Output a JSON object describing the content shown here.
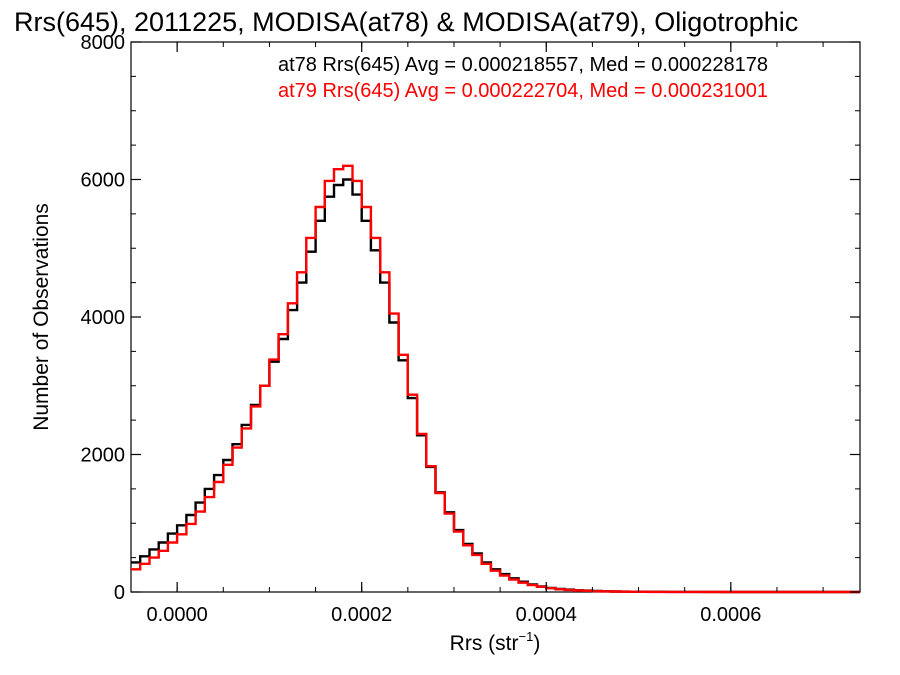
{
  "title": "Rrs(645), 2011225, MODISA(at78) & MODISA(at79), Oligotrophic",
  "stats": [
    {
      "text": "at78 Rrs(645) Avg = 0.000218557, Med = 0.000228178",
      "color": "#000000"
    },
    {
      "text": "at79 Rrs(645) Avg = 0.000222704, Med = 0.000231001",
      "color": "#ff0000"
    }
  ],
  "chart_data": {
    "type": "line",
    "step": true,
    "xlabel_main": "Rrs (str",
    "xlabel_sup": "−1",
    "xlabel_close": ")",
    "ylabel": "Number of Observations",
    "xlim": [
      -5e-05,
      0.00074
    ],
    "ylim": [
      0,
      8000
    ],
    "xticks": [
      0.0,
      0.0002,
      0.0004,
      0.0006
    ],
    "xtick_labels": [
      "0.0000",
      "0.0002",
      "0.0004",
      "0.0006"
    ],
    "yticks": [
      0,
      2000,
      4000,
      6000,
      8000
    ],
    "ytick_labels": [
      "0",
      "2000",
      "4000",
      "6000",
      "8000"
    ],
    "grid": false,
    "series": [
      {
        "name": "at78",
        "color": "#000000",
        "x": [
          -5e-05,
          -4e-05,
          -3e-05,
          -2e-05,
          -1e-05,
          0.0,
          1e-05,
          2e-05,
          3e-05,
          4e-05,
          5e-05,
          6e-05,
          7e-05,
          8e-05,
          9e-05,
          0.0001,
          0.00011,
          0.00012,
          0.00013,
          0.00014,
          0.00015,
          0.00016,
          0.00017,
          0.00018,
          0.00019,
          0.0002,
          0.00021,
          0.00022,
          0.00023,
          0.00024,
          0.00025,
          0.00026,
          0.00027,
          0.00028,
          0.00029,
          0.0003,
          0.00031,
          0.00032,
          0.00033,
          0.00034,
          0.00035,
          0.00036,
          0.00037,
          0.00038,
          0.00039,
          0.0004,
          0.00041,
          0.00042,
          0.00043,
          0.00044,
          0.00045,
          0.00046,
          0.00047,
          0.00048,
          0.00049,
          0.0005,
          0.00051,
          0.00052,
          0.00053,
          0.00054,
          0.00055,
          0.00056,
          0.00057,
          0.00058,
          0.00059,
          0.0006,
          0.00062,
          0.00064,
          0.00066,
          0.00068,
          0.0007,
          0.00072,
          0.00074
        ],
        "values": [
          430,
          520,
          620,
          720,
          850,
          970,
          1120,
          1300,
          1500,
          1700,
          1920,
          2150,
          2430,
          2720,
          3000,
          3350,
          3680,
          4100,
          4500,
          4950,
          5400,
          5750,
          5920,
          6000,
          5780,
          5400,
          4970,
          4500,
          3920,
          3370,
          2820,
          2280,
          1820,
          1450,
          1160,
          900,
          700,
          560,
          430,
          330,
          260,
          200,
          150,
          110,
          80,
          60,
          45,
          35,
          25,
          20,
          15,
          10,
          8,
          6,
          5,
          4,
          3,
          3,
          2,
          2,
          1,
          1,
          1,
          1,
          0,
          0,
          0,
          0,
          0,
          0,
          0,
          0,
          0
        ]
      },
      {
        "name": "at79",
        "color": "#ff0000",
        "x": [
          -5e-05,
          -4e-05,
          -3e-05,
          -2e-05,
          -1e-05,
          0.0,
          1e-05,
          2e-05,
          3e-05,
          4e-05,
          5e-05,
          6e-05,
          7e-05,
          8e-05,
          9e-05,
          0.0001,
          0.00011,
          0.00012,
          0.00013,
          0.00014,
          0.00015,
          0.00016,
          0.00017,
          0.00018,
          0.00019,
          0.0002,
          0.00021,
          0.00022,
          0.00023,
          0.00024,
          0.00025,
          0.00026,
          0.00027,
          0.00028,
          0.00029,
          0.0003,
          0.00031,
          0.00032,
          0.00033,
          0.00034,
          0.00035,
          0.00036,
          0.00037,
          0.00038,
          0.00039,
          0.0004,
          0.00041,
          0.00042,
          0.00043,
          0.00044,
          0.00045,
          0.00046,
          0.00047,
          0.00048,
          0.00049,
          0.0005,
          0.00051,
          0.00052,
          0.00053,
          0.00054,
          0.00055,
          0.00056,
          0.00057,
          0.00058,
          0.00059,
          0.0006,
          0.00062,
          0.00064,
          0.00066,
          0.00068,
          0.0007,
          0.00072,
          0.00074
        ],
        "values": [
          330,
          410,
          500,
          600,
          720,
          840,
          990,
          1170,
          1380,
          1600,
          1850,
          2100,
          2380,
          2700,
          3000,
          3380,
          3750,
          4200,
          4650,
          5150,
          5600,
          5980,
          6150,
          6200,
          5980,
          5600,
          5150,
          4650,
          4050,
          3450,
          2870,
          2300,
          1830,
          1440,
          1140,
          880,
          680,
          540,
          410,
          310,
          240,
          180,
          135,
          100,
          75,
          55,
          40,
          30,
          22,
          17,
          12,
          9,
          7,
          5,
          4,
          3,
          2,
          2,
          1,
          1,
          1,
          1,
          0,
          0,
          0,
          0,
          0,
          0,
          0,
          0,
          0,
          0,
          0
        ]
      }
    ]
  }
}
